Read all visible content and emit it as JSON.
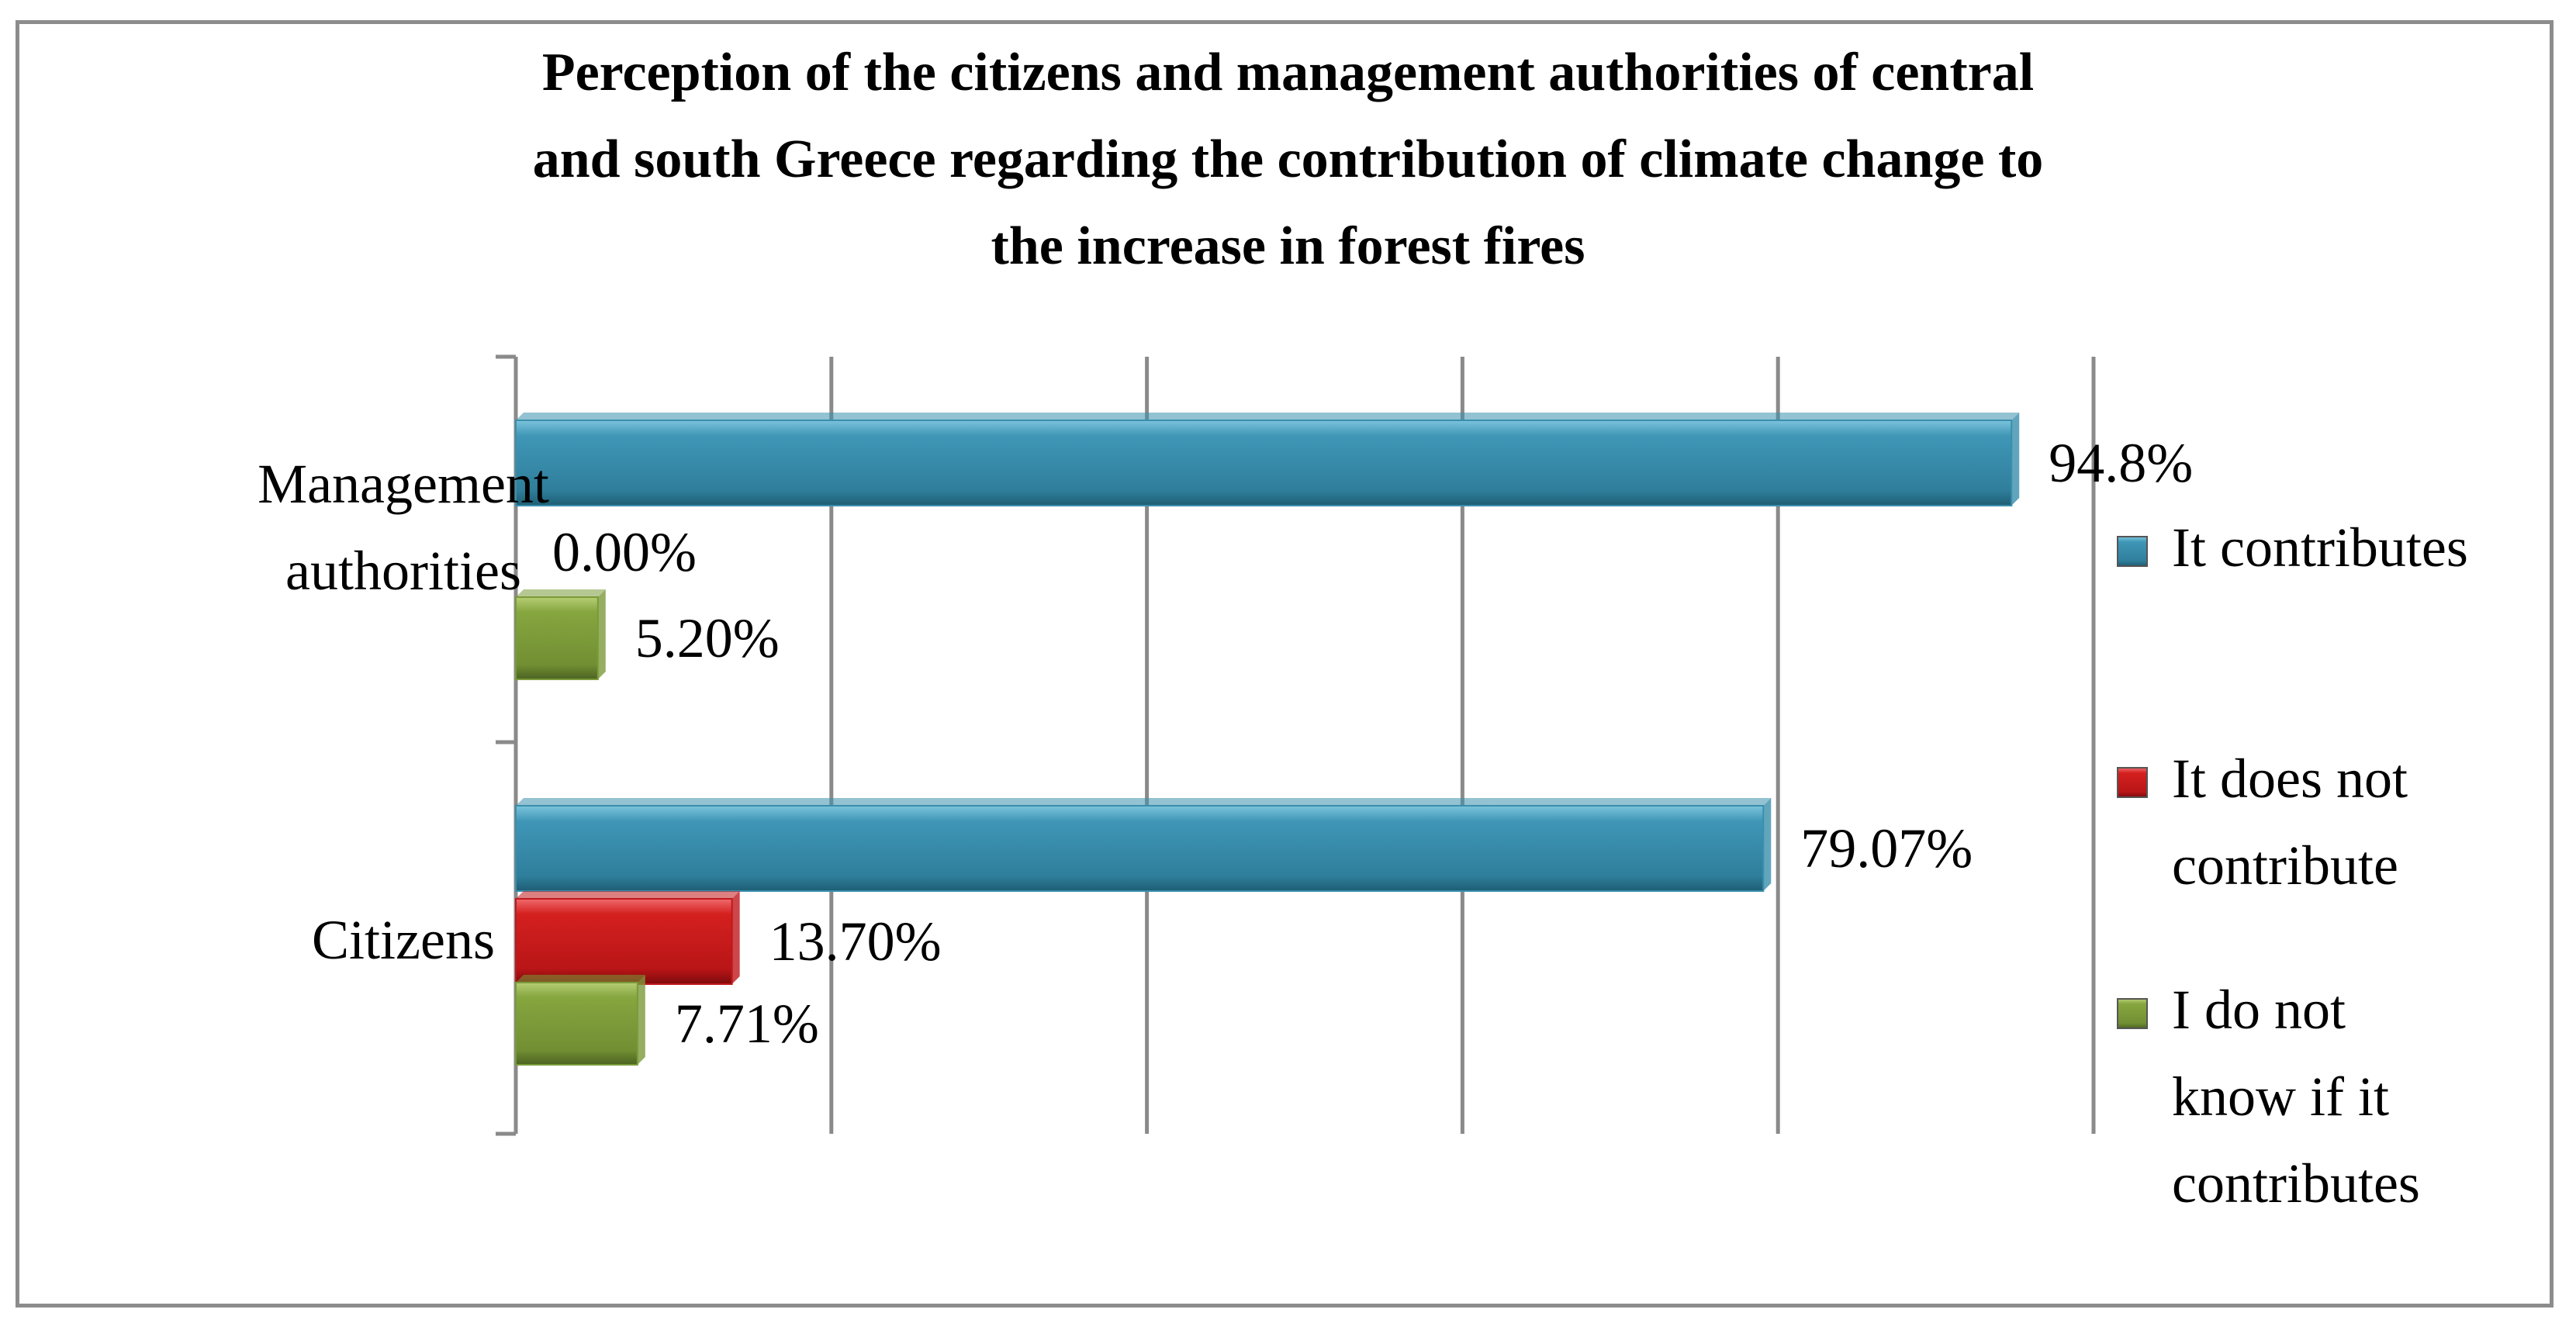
{
  "chart_data": {
    "type": "bar",
    "orientation": "horizontal",
    "title_lines": [
      "Perception of the citizens and management authorities of central",
      "and south Greece regarding the contribution of climate change to",
      "the increase in forest fires"
    ],
    "categories": [
      "Management authorities",
      "Citizens"
    ],
    "category_label_lines": [
      [
        "Management",
        "authorities"
      ],
      [
        "Citizens"
      ]
    ],
    "series": [
      {
        "name": "It contributes",
        "color": "#3a8fad",
        "values": [
          94.8,
          79.07
        ],
        "labels": [
          "94.8%",
          "79.07%"
        ]
      },
      {
        "name": "It does not contribute",
        "color": "#c0181b",
        "values": [
          0.0,
          13.7
        ],
        "labels": [
          "0.00%",
          "13.70%"
        ]
      },
      {
        "name": "I do not know if it contributes",
        "color": "#7a9a39",
        "values": [
          5.2,
          7.71
        ],
        "labels": [
          "5.20%",
          "7.71%"
        ]
      }
    ],
    "legend_label_lines": [
      [
        "It contributes"
      ],
      [
        "It does not",
        "contribute"
      ],
      [
        "I do not",
        "know if it",
        "contributes"
      ]
    ],
    "xlim": [
      0,
      100
    ],
    "grid": true,
    "legend_position": "right"
  }
}
